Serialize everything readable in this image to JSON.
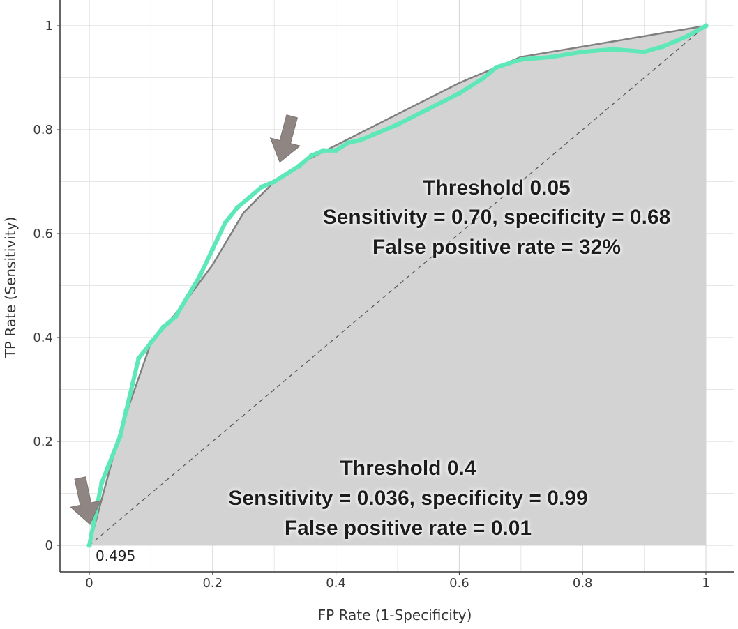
{
  "chart_data": {
    "type": "line",
    "title": "",
    "xlabel": "FP Rate (1-Specificity)",
    "ylabel": "TP Rate (Sensitivity)",
    "xlim": [
      0,
      1
    ],
    "ylim": [
      0,
      1
    ],
    "x_ticks": [
      "0",
      "0.2",
      "0.4",
      "0.6",
      "0.8",
      "1"
    ],
    "y_ticks": [
      "0",
      "0.2",
      "0.4",
      "0.6",
      "0.8",
      "1"
    ],
    "grid": true,
    "series": [
      {
        "style": "empirical ROC (cyan)",
        "color": "#5ee8b8",
        "x": [
          0,
          0.01,
          0.02,
          0.03,
          0.04,
          0.05,
          0.06,
          0.07,
          0.08,
          0.1,
          0.12,
          0.14,
          0.16,
          0.18,
          0.2,
          0.22,
          0.24,
          0.26,
          0.28,
          0.3,
          0.32,
          0.34,
          0.36,
          0.38,
          0.4,
          0.42,
          0.44,
          0.46,
          0.5,
          0.55,
          0.6,
          0.64,
          0.66,
          0.7,
          0.75,
          0.8,
          0.85,
          0.9,
          0.93,
          0.95,
          0.97,
          0.985,
          1
        ],
        "y": [
          0,
          0.06,
          0.12,
          0.15,
          0.18,
          0.21,
          0.26,
          0.31,
          0.36,
          0.39,
          0.42,
          0.44,
          0.48,
          0.52,
          0.57,
          0.62,
          0.65,
          0.67,
          0.69,
          0.7,
          0.715,
          0.73,
          0.75,
          0.76,
          0.76,
          0.775,
          0.78,
          0.79,
          0.81,
          0.84,
          0.87,
          0.9,
          0.92,
          0.935,
          0.94,
          0.95,
          0.955,
          0.95,
          0.96,
          0.97,
          0.98,
          0.99,
          1
        ]
      },
      {
        "style": "smoothed ROC (grey)",
        "color": "#808080",
        "x": [
          0,
          0.05,
          0.1,
          0.15,
          0.2,
          0.25,
          0.3,
          0.35,
          0.4,
          0.5,
          0.6,
          0.7,
          0.8,
          0.9,
          1
        ],
        "y": [
          0,
          0.22,
          0.39,
          0.46,
          0.54,
          0.64,
          0.7,
          0.74,
          0.77,
          0.83,
          0.89,
          0.94,
          0.96,
          0.98,
          1
        ]
      },
      {
        "style": "chance diagonal (dashed)",
        "color": "#555555",
        "x": [
          0,
          1
        ],
        "y": [
          0,
          1
        ]
      }
    ],
    "annotations": [
      {
        "id": "threshold_high",
        "lines": [
          "Threshold 0.05",
          "Sensitivity = 0.70, specificity = 0.68",
          "False positive rate = 32%"
        ],
        "point": [
          0.31,
          0.7
        ]
      },
      {
        "id": "threshold_low",
        "lines": [
          "Threshold 0.4",
          "Sensitivity = 0.036, specificity = 0.99",
          "False positive rate = 0.01"
        ],
        "point": [
          0,
          0
        ]
      },
      {
        "id": "origin_label",
        "text": "0.495"
      }
    ]
  }
}
